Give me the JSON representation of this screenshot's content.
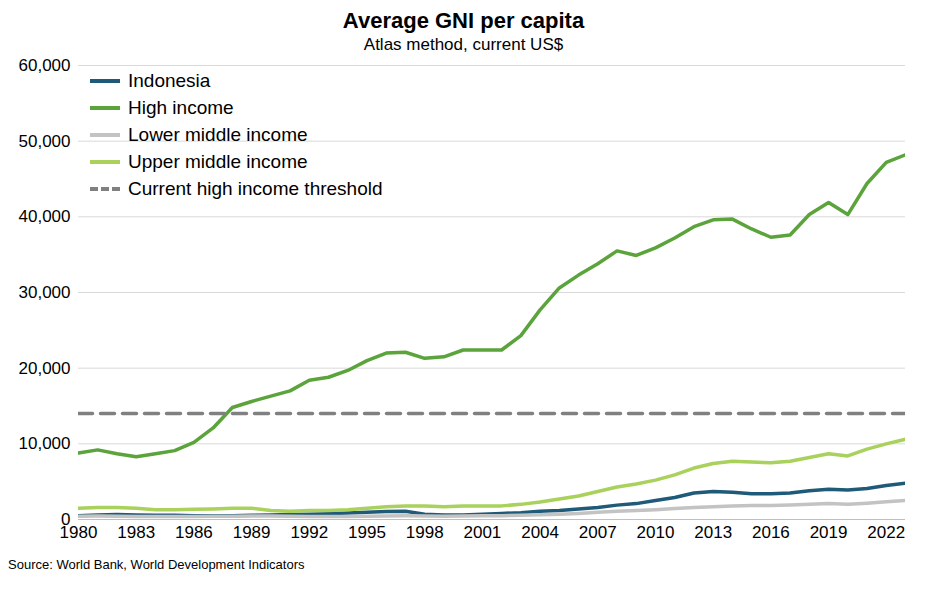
{
  "chart_data": {
    "type": "line",
    "title": "Average GNI per capita",
    "subtitle": "Atlas method, current US$",
    "caption": "Source: World Bank, World Development Indicators",
    "x": [
      1980,
      1981,
      1982,
      1983,
      1984,
      1985,
      1986,
      1987,
      1988,
      1989,
      1990,
      1991,
      1992,
      1993,
      1994,
      1995,
      1996,
      1997,
      1998,
      1999,
      2000,
      2001,
      2002,
      2003,
      2004,
      2005,
      2006,
      2007,
      2008,
      2009,
      2010,
      2011,
      2012,
      2013,
      2014,
      2015,
      2016,
      2017,
      2018,
      2019,
      2020,
      2021,
      2022,
      2023
    ],
    "series": [
      {
        "name": "Indonesia",
        "color": "#1f5a78",
        "values": [
          500,
          600,
          650,
          600,
          550,
          550,
          500,
          480,
          500,
          550,
          600,
          650,
          700,
          750,
          850,
          950,
          1050,
          1100,
          700,
          600,
          600,
          700,
          800,
          900,
          1100,
          1200,
          1400,
          1600,
          1900,
          2100,
          2500,
          2900,
          3500,
          3700,
          3600,
          3400,
          3400,
          3500,
          3800,
          4000,
          3900,
          4100,
          4500,
          4800
        ]
      },
      {
        "name": "High income",
        "color": "#5ba33b",
        "values": [
          8800,
          9200,
          8700,
          8300,
          8700,
          9100,
          10200,
          12100,
          14800,
          15600,
          16300,
          17000,
          18400,
          18800,
          19700,
          21000,
          22000,
          22100,
          21300,
          21500,
          22400,
          22400,
          22400,
          24300,
          27700,
          30600,
          32300,
          33800,
          35500,
          34900,
          35900,
          37200,
          38700,
          39600,
          39700,
          38400,
          37300,
          37600,
          40300,
          41900,
          40300,
          44400,
          47200,
          48200
        ]
      },
      {
        "name": "Lower middle income",
        "color": "#c3c3c3",
        "values": [
          420,
          450,
          430,
          400,
          400,
          400,
          400,
          420,
          430,
          450,
          450,
          430,
          400,
          400,
          400,
          430,
          460,
          480,
          450,
          430,
          450,
          480,
          500,
          550,
          620,
          700,
          800,
          950,
          1100,
          1200,
          1300,
          1450,
          1600,
          1700,
          1800,
          1850,
          1850,
          1900,
          2000,
          2100,
          2000,
          2150,
          2350,
          2500
        ]
      },
      {
        "name": "Upper middle income",
        "color": "#a9d15b",
        "values": [
          1500,
          1600,
          1600,
          1500,
          1300,
          1300,
          1350,
          1400,
          1500,
          1500,
          1200,
          1100,
          1200,
          1200,
          1300,
          1500,
          1700,
          1800,
          1800,
          1700,
          1800,
          1800,
          1800,
          2000,
          2300,
          2700,
          3100,
          3700,
          4300,
          4700,
          5200,
          5900,
          6800,
          7400,
          7700,
          7600,
          7500,
          7700,
          8200,
          8700,
          8400,
          9300,
          10000,
          10600
        ]
      },
      {
        "name": "Current high income threshold",
        "color": "#808080",
        "line_style": "dashed",
        "values": [
          14000,
          14000,
          14000,
          14000,
          14000,
          14000,
          14000,
          14000,
          14000,
          14000,
          14000,
          14000,
          14000,
          14000,
          14000,
          14000,
          14000,
          14000,
          14000,
          14000,
          14000,
          14000,
          14000,
          14000,
          14000,
          14000,
          14000,
          14000,
          14000,
          14000,
          14000,
          14000,
          14000,
          14000,
          14000,
          14000,
          14000,
          14000,
          14000,
          14000,
          14000,
          14000,
          14000,
          14000
        ]
      }
    ],
    "xlim": [
      1980,
      2023
    ],
    "xticks": [
      1980,
      1983,
      1986,
      1989,
      1992,
      1995,
      1998,
      2001,
      2004,
      2007,
      2010,
      2013,
      2016,
      2019,
      2022
    ],
    "ylim": [
      0,
      60000
    ],
    "yticks": [
      0,
      {
        "value": 10000,
        "label": "10,000"
      },
      {
        "value": 20000,
        "label": "20,000"
      },
      {
        "value": 30000,
        "label": "30,000"
      },
      {
        "value": 40000,
        "label": "40,000"
      },
      {
        "value": 50000,
        "label": "50,000"
      },
      {
        "value": 60000,
        "label": "60,000"
      }
    ],
    "grid": true,
    "legend": "top-left"
  }
}
